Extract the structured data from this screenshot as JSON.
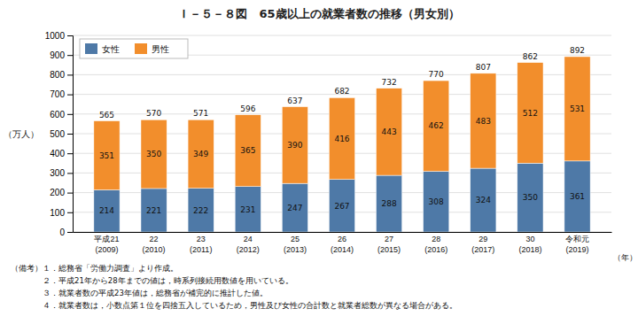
{
  "chart_data": {
    "type": "bar",
    "title": "Ｉ－５－８図　65歳以上の就業者数の推移（男女別）",
    "y_label": "（万人）",
    "x_label": "（年）",
    "categories": [
      "平成21\n(2009)",
      "22\n(2010)",
      "23\n(2011)",
      "24\n(2012)",
      "25\n(2013)",
      "26\n(2014)",
      "27\n(2015)",
      "28\n(2016)",
      "29\n(2017)",
      "30\n(2018)",
      "令和元\n(2019)"
    ],
    "series": [
      {
        "name": "女性",
        "values": [
          214,
          221,
          222,
          231,
          247,
          267,
          288,
          308,
          324,
          350,
          361
        ]
      },
      {
        "name": "男性",
        "values": [
          351,
          350,
          349,
          365,
          390,
          416,
          443,
          462,
          483,
          512,
          531
        ]
      }
    ],
    "totals": [
      565,
      570,
      571,
      596,
      637,
      682,
      732,
      770,
      807,
      862,
      892
    ],
    "stacked": true,
    "data_labels": true,
    "ylim": [
      0,
      1000
    ],
    "yticks": [
      0,
      100,
      200,
      300,
      400,
      500,
      600,
      700,
      800,
      900,
      1000
    ],
    "grid": true,
    "legend": "upper left",
    "annotations": [
      "（備考）１．総務省「労働力調査」より作成。",
      "　　　　２．平成21年から28年までの値は，時系列接続用数値を用いている。",
      "　　　　３．就業者数の平成23年値は，総務省が補完的に推計した値。",
      "　　　　４．就業者数は，小数点第１位を四捨五入しているため，男性及び女性の合計数と就業者総数が異なる場合がある。"
    ]
  }
}
